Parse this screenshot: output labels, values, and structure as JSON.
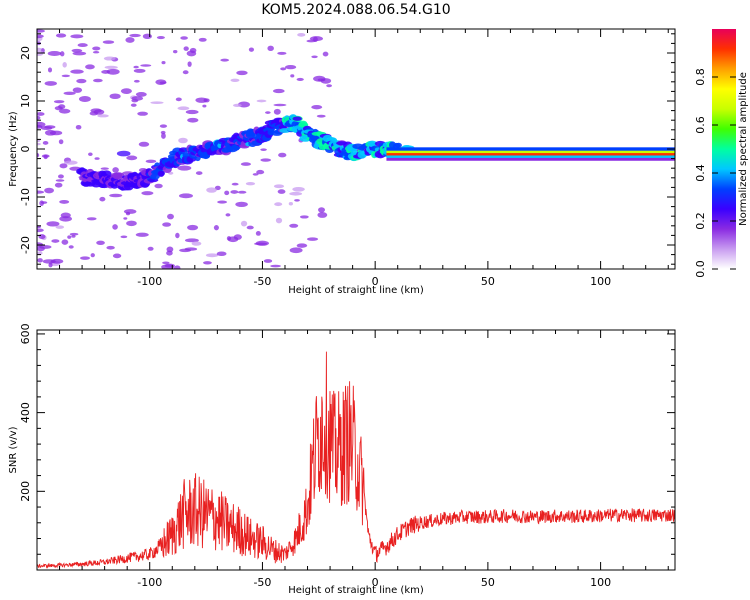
{
  "figure": {
    "title": "KOM5.2024.088.06.54.G10"
  },
  "chart_data": [
    {
      "type": "heatmap",
      "title": "KOM5.2024.088.06.54.G10",
      "xlabel": "Height of straight line (km)",
      "ylabel": "Frequency (Hz)",
      "xlim": [
        -150,
        133
      ],
      "ylim": [
        -25,
        25
      ],
      "xticks": [
        -100,
        -50,
        0,
        50,
        100
      ],
      "yticks": [
        -20,
        -10,
        0,
        10,
        20
      ],
      "grid": false,
      "trace": {
        "x": [
          -130,
          -120,
          -110,
          -100,
          -90,
          -80,
          -70,
          -60,
          -50,
          -45,
          -40,
          -35,
          -30,
          -25,
          -20,
          -15,
          -10,
          -5,
          0,
          5,
          10,
          20,
          50,
          100,
          133
        ],
        "y": [
          -6,
          -6.5,
          -7,
          -6,
          -2,
          -1,
          0.5,
          1.5,
          3,
          4.5,
          5,
          5.5,
          3,
          2,
          1,
          0,
          -1,
          -0.5,
          0,
          0,
          -0.5,
          -0.5,
          -0.5,
          -0.5,
          -0.5
        ]
      },
      "colorbar": {
        "label": "Normalized spectral amplitude",
        "ticks": [
          "0.0",
          "0.2",
          "0.4",
          "0.6",
          "0.8"
        ],
        "range": [
          0,
          1
        ],
        "colors": [
          "#ffffff",
          "#c89bf0",
          "#8a2be2",
          "#3a00ff",
          "#0040ff",
          "#00c8ff",
          "#00ffa0",
          "#40ff00",
          "#c8ff00",
          "#ffff00",
          "#ffa000",
          "#ff3000",
          "#e8005a"
        ]
      }
    },
    {
      "type": "line",
      "xlabel": "Height of straight line (km)",
      "ylabel": "SNR (v/v)",
      "xlim": [
        -150,
        133
      ],
      "ylim": [
        0,
        610
      ],
      "xticks": [
        -100,
        -50,
        0,
        50,
        100
      ],
      "yticks": [
        200,
        400,
        600
      ],
      "grid": false,
      "line_color": "#e82020",
      "series": [
        {
          "x": [
            -150,
            -140,
            -130,
            -120,
            -110,
            -100,
            -95,
            -90,
            -85,
            -80,
            -75,
            -70,
            -65,
            -60,
            -55,
            -50,
            -45,
            -40,
            -35,
            -30,
            -28,
            -25,
            -22,
            -20,
            -18,
            -15,
            -12,
            -10,
            -8,
            -5,
            -3,
            0,
            5,
            10,
            15,
            20,
            30,
            40,
            50,
            60,
            70,
            80,
            90,
            100,
            110,
            120,
            133
          ],
          "y": [
            10,
            12,
            15,
            20,
            30,
            40,
            60,
            90,
            140,
            150,
            140,
            130,
            110,
            100,
            80,
            70,
            50,
            40,
            80,
            160,
            250,
            350,
            380,
            330,
            300,
            310,
            330,
            320,
            280,
            200,
            90,
            40,
            60,
            90,
            110,
            120,
            130,
            135,
            135,
            138,
            135,
            137,
            136,
            138,
            140,
            138,
            140
          ]
        }
      ]
    }
  ]
}
